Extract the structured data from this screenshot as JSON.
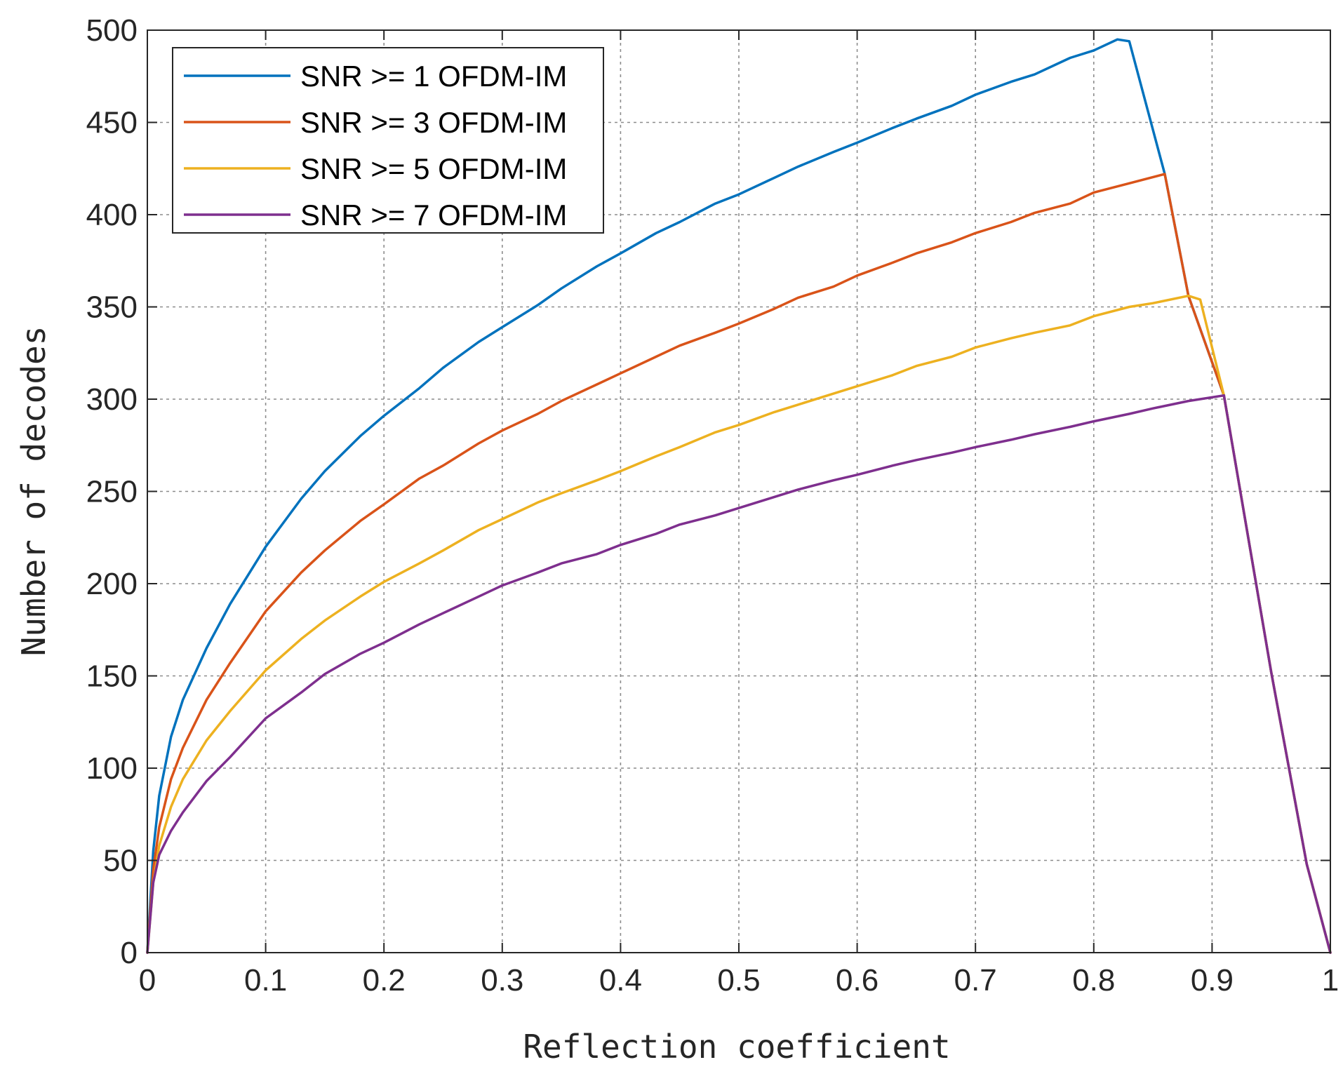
{
  "chart_data": {
    "type": "line",
    "title": "",
    "xlabel": "Reflection coefficient",
    "ylabel": "Number of decodes",
    "xlim": [
      0,
      1
    ],
    "ylim": [
      0,
      500
    ],
    "xticks": [
      0,
      0.1,
      0.2,
      0.3,
      0.4,
      0.5,
      0.6,
      0.7,
      0.8,
      0.9,
      1
    ],
    "xtick_labels": [
      "0",
      "0.1",
      "0.2",
      "0.3",
      "0.4",
      "0.5",
      "0.6",
      "0.7",
      "0.8",
      "0.9",
      "1"
    ],
    "yticks": [
      0,
      50,
      100,
      150,
      200,
      250,
      300,
      350,
      400,
      450,
      500
    ],
    "ytick_labels": [
      "0",
      "50",
      "100",
      "150",
      "200",
      "250",
      "300",
      "350",
      "400",
      "450",
      "500"
    ],
    "grid": true,
    "legend_position": "top-left",
    "series": [
      {
        "name": "SNR >= 1 OFDM-IM",
        "color": "#0072BD",
        "x": [
          0,
          0.005,
          0.01,
          0.02,
          0.03,
          0.05,
          0.07,
          0.1,
          0.13,
          0.15,
          0.18,
          0.2,
          0.23,
          0.25,
          0.28,
          0.3,
          0.33,
          0.35,
          0.38,
          0.4,
          0.43,
          0.45,
          0.48,
          0.5,
          0.53,
          0.55,
          0.58,
          0.6,
          0.63,
          0.65,
          0.68,
          0.7,
          0.73,
          0.75,
          0.78,
          0.8,
          0.82,
          0.83,
          0.86,
          0.88,
          0.91,
          0.95,
          0.98,
          1.0
        ],
        "y": [
          0,
          55,
          85,
          117,
          137,
          165,
          189,
          220,
          246,
          261,
          280,
          291,
          306,
          317,
          331,
          339,
          351,
          360,
          372,
          379,
          390,
          396,
          406,
          411,
          420,
          426,
          434,
          439,
          447,
          452,
          459,
          465,
          472,
          476,
          485,
          489,
          495,
          494,
          422,
          356,
          302,
          152,
          48,
          0
        ]
      },
      {
        "name": "SNR >= 3 OFDM-IM",
        "color": "#D95319",
        "x": [
          0,
          0.005,
          0.01,
          0.02,
          0.03,
          0.05,
          0.07,
          0.1,
          0.13,
          0.15,
          0.18,
          0.2,
          0.23,
          0.25,
          0.28,
          0.3,
          0.33,
          0.35,
          0.38,
          0.4,
          0.43,
          0.45,
          0.48,
          0.5,
          0.53,
          0.55,
          0.58,
          0.6,
          0.63,
          0.65,
          0.68,
          0.7,
          0.73,
          0.75,
          0.78,
          0.8,
          0.83,
          0.86,
          0.88,
          0.91,
          0.95,
          0.98,
          1.0
        ],
        "y": [
          0,
          45,
          68,
          94,
          111,
          137,
          157,
          185,
          206,
          218,
          234,
          243,
          257,
          264,
          276,
          283,
          292,
          299,
          308,
          314,
          323,
          329,
          336,
          341,
          349,
          355,
          361,
          367,
          374,
          379,
          385,
          390,
          396,
          401,
          406,
          412,
          417,
          422,
          356,
          302,
          152,
          48,
          0
        ]
      },
      {
        "name": "SNR >= 5 OFDM-IM",
        "color": "#EDB120",
        "x": [
          0,
          0.005,
          0.01,
          0.02,
          0.03,
          0.05,
          0.07,
          0.1,
          0.13,
          0.15,
          0.18,
          0.2,
          0.23,
          0.25,
          0.28,
          0.3,
          0.33,
          0.35,
          0.38,
          0.4,
          0.43,
          0.45,
          0.48,
          0.5,
          0.53,
          0.55,
          0.58,
          0.6,
          0.63,
          0.65,
          0.68,
          0.7,
          0.73,
          0.75,
          0.78,
          0.8,
          0.83,
          0.85,
          0.88,
          0.89,
          0.91,
          0.95,
          0.98,
          1.0
        ],
        "y": [
          0,
          38,
          58,
          79,
          94,
          115,
          131,
          153,
          170,
          180,
          193,
          201,
          211,
          218,
          229,
          235,
          244,
          249,
          256,
          261,
          269,
          274,
          282,
          286,
          293,
          297,
          303,
          307,
          313,
          318,
          323,
          328,
          333,
          336,
          340,
          345,
          350,
          352,
          356,
          354,
          302,
          152,
          48,
          0
        ]
      },
      {
        "name": "SNR >= 7 OFDM-IM",
        "color": "#7E2F8E",
        "x": [
          0,
          0.005,
          0.01,
          0.02,
          0.03,
          0.05,
          0.07,
          0.1,
          0.13,
          0.15,
          0.18,
          0.2,
          0.23,
          0.25,
          0.28,
          0.3,
          0.33,
          0.35,
          0.38,
          0.4,
          0.43,
          0.45,
          0.48,
          0.5,
          0.53,
          0.55,
          0.58,
          0.6,
          0.63,
          0.65,
          0.68,
          0.7,
          0.73,
          0.75,
          0.78,
          0.8,
          0.83,
          0.85,
          0.88,
          0.91,
          0.95,
          0.98,
          1.0
        ],
        "y": [
          0,
          38,
          53,
          66,
          76,
          93,
          106,
          127,
          141,
          151,
          162,
          168,
          178,
          184,
          193,
          199,
          206,
          211,
          216,
          221,
          227,
          232,
          237,
          241,
          247,
          251,
          256,
          259,
          264,
          267,
          271,
          274,
          278,
          281,
          285,
          288,
          292,
          295,
          299,
          302,
          152,
          48,
          0
        ]
      }
    ]
  }
}
